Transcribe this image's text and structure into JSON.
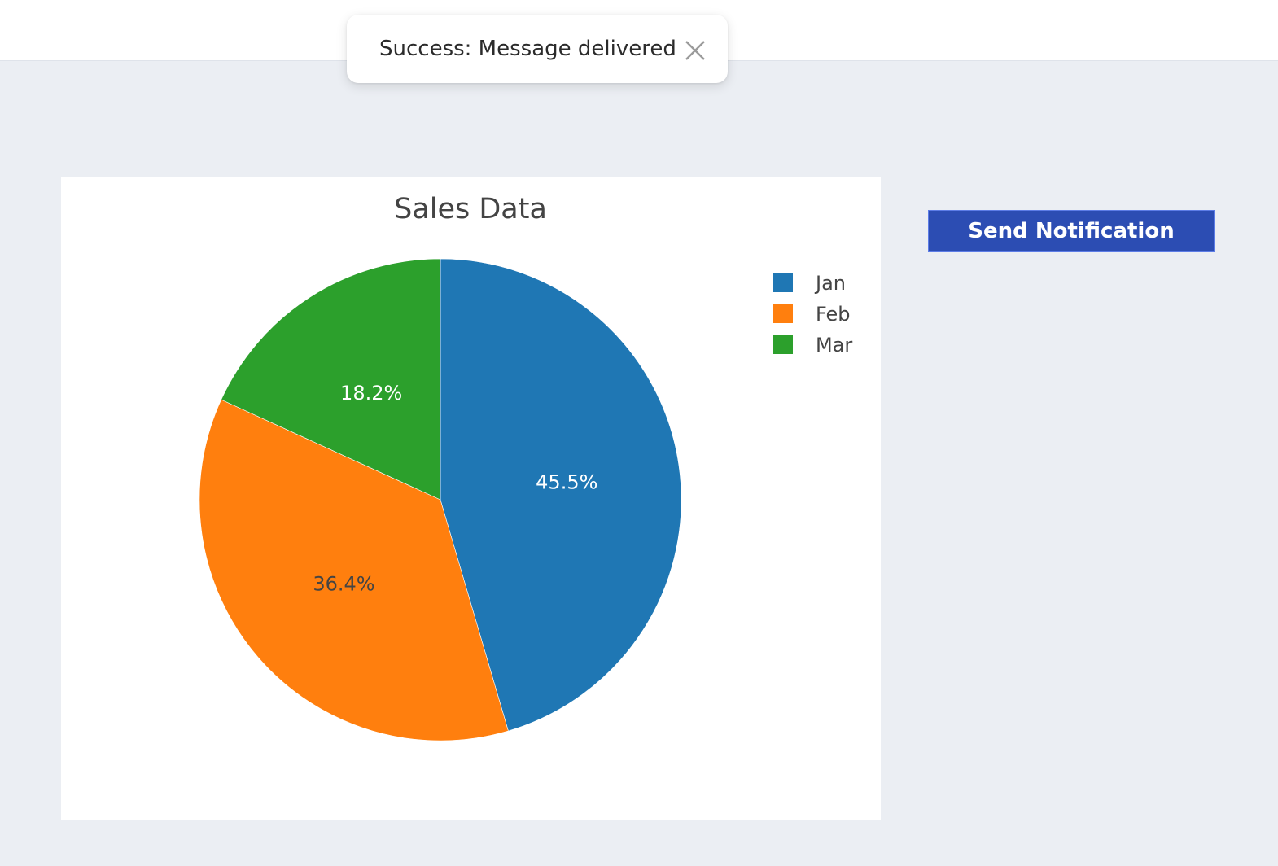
{
  "toast": {
    "message": "Success: Message delivered",
    "close_icon": "close-icon"
  },
  "button": {
    "label": "Send Notification",
    "color": "#2c4db3"
  },
  "chart_data": {
    "type": "pie",
    "title": "Sales Data",
    "categories": [
      "Jan",
      "Feb",
      "Mar"
    ],
    "values": [
      45.5,
      36.4,
      18.2
    ],
    "labels": [
      "45.5%",
      "36.4%",
      "18.2%"
    ],
    "colors": [
      "#1f77b4",
      "#ff7f0e",
      "#2ca02c"
    ],
    "label_colors": [
      "#ffffff",
      "#444444",
      "#ffffff"
    ],
    "legend": "top-right",
    "sort": "descending",
    "direction": "clockwise"
  }
}
